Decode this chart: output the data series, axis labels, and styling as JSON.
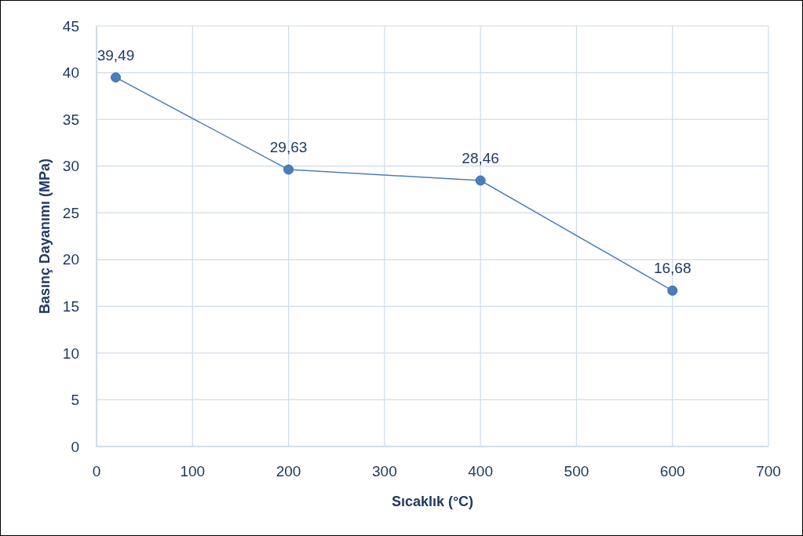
{
  "chart_data": {
    "type": "line",
    "xlabel": "Sıcaklık (°C)",
    "ylabel": "Basınç Dayanımı (MPa)",
    "x": [
      20,
      200,
      400,
      600
    ],
    "series": [
      {
        "color": "#4a7ebb",
        "values": [
          39.49,
          29.63,
          28.46,
          16.68
        ],
        "value_labels": [
          "39,49",
          "29,63",
          "28,46",
          "16,68"
        ]
      }
    ],
    "xlim": [
      0,
      700
    ],
    "xticks": [
      0,
      100,
      200,
      300,
      400,
      500,
      600,
      700
    ],
    "ylim": [
      0,
      45
    ],
    "yticks": [
      0,
      5,
      10,
      15,
      20,
      25,
      30,
      35,
      40,
      45
    ],
    "grid": true,
    "marker": "circle",
    "line_style": "solid"
  }
}
